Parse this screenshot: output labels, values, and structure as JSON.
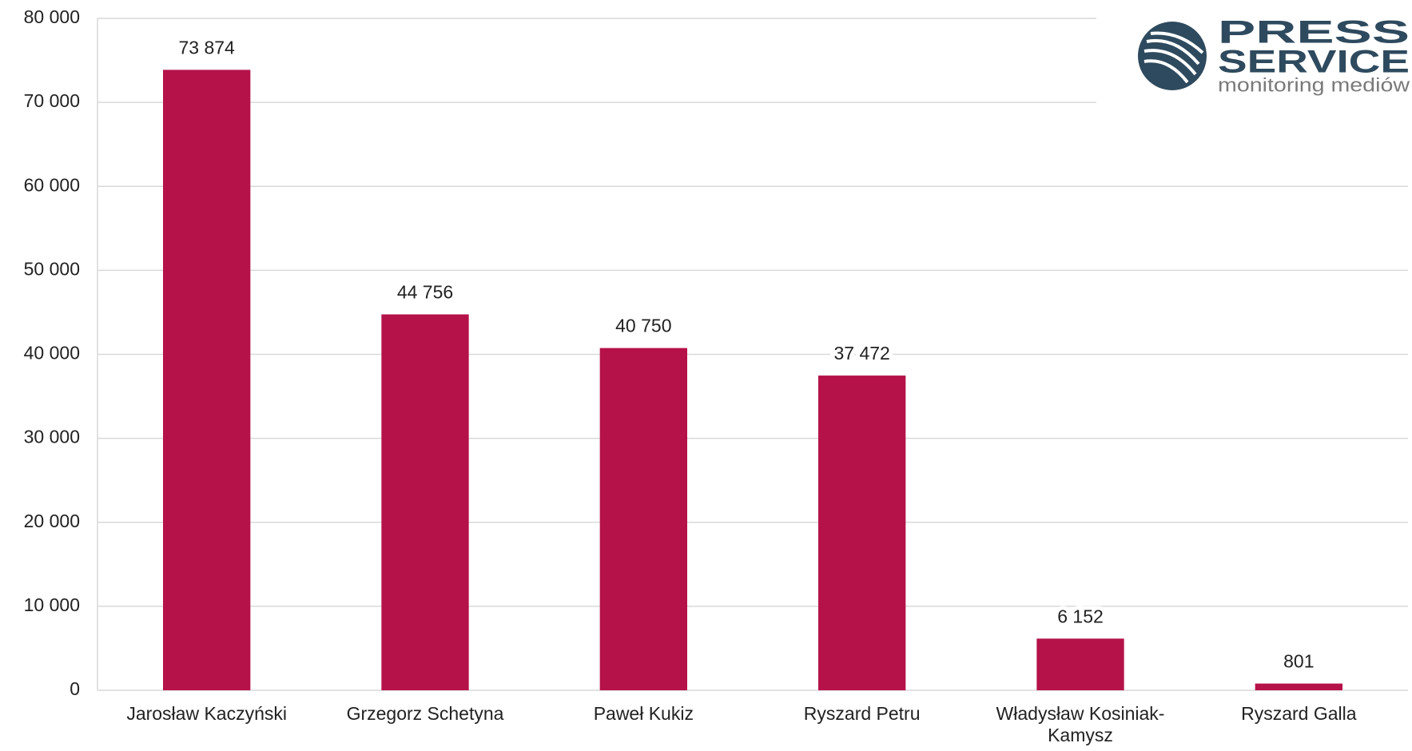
{
  "chart_data": {
    "type": "bar",
    "categories": [
      "Jarosław Kaczyński",
      "Grzegorz Schetyna",
      "Paweł Kukiz",
      "Ryszard Petru",
      "Władysław Kosiniak-Kamysz",
      "Ryszard Galla"
    ],
    "values": [
      73874,
      44756,
      40750,
      37472,
      6152,
      801
    ],
    "value_labels": [
      "73 874",
      "44 756",
      "40 750",
      "37 472",
      "6 152",
      "801"
    ],
    "color": "#b5124a",
    "ylim": [
      0,
      80000
    ],
    "yticks": [
      0,
      {
        "value": 10000,
        "label": "10 000"
      },
      {
        "value": 20000,
        "label": "20 000"
      },
      {
        "value": 30000,
        "label": "30 000"
      },
      {
        "value": 40000,
        "label": "40 000"
      },
      {
        "value": 50000,
        "label": "50 000"
      },
      {
        "value": 60000,
        "label": "60 000"
      },
      {
        "value": 70000,
        "label": "70 000"
      },
      {
        "value": 80000,
        "label": "80 000"
      }
    ],
    "grid": true
  },
  "logo": {
    "line1": "PRESS",
    "line2": "SERVICE",
    "tagline": "monitoring mediów"
  }
}
